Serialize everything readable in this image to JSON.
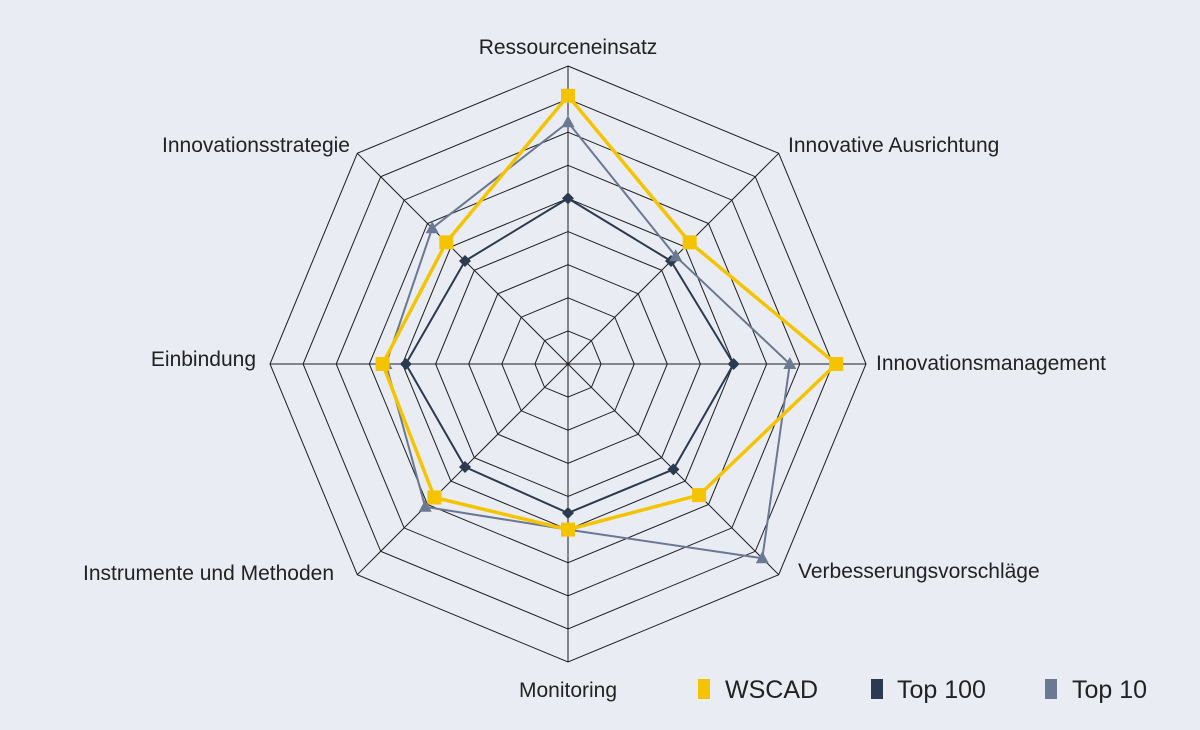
{
  "chart_data": {
    "type": "radar",
    "title": "",
    "axes": [
      "Ressourceneinsatz",
      "Innovative Ausrichtung",
      "Innovationsmanagement",
      "Verbesserungsvorschläge",
      "Monitoring",
      "Instrumente und Methoden",
      "Einbindung",
      "Innovationsstrategie"
    ],
    "range": [
      0,
      9
    ],
    "rings": 9,
    "grid": true,
    "legend_position": "bottom-right",
    "series": [
      {
        "name": "WSCAD",
        "color": "#f5c400",
        "marker": "square",
        "values": [
          8.1,
          5.2,
          8.1,
          5.6,
          5.0,
          5.7,
          5.6,
          5.2
        ]
      },
      {
        "name": "Top 100",
        "color": "#2b3a4f",
        "marker": "diamond",
        "values": [
          5.0,
          4.4,
          5.0,
          4.5,
          4.5,
          4.4,
          4.9,
          4.4
        ]
      },
      {
        "name": "Top 10",
        "color": "#6b7893",
        "marker": "triangle",
        "values": [
          7.3,
          4.6,
          6.7,
          8.3,
          5.0,
          6.1,
          5.5,
          5.8
        ]
      }
    ]
  }
}
